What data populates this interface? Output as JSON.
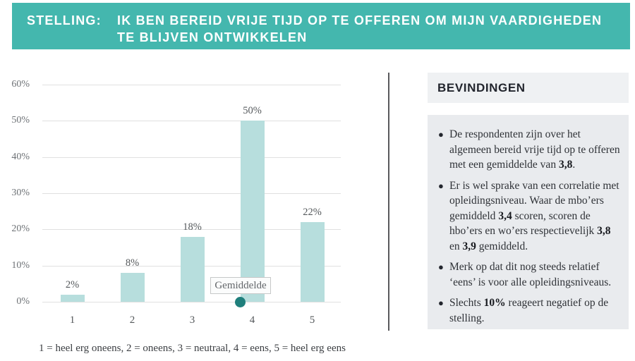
{
  "banner": {
    "label": "STELLING:",
    "statement_line1": "IK BEN BEREID VRIJE TIJD OP TE OFFEREN OM MIJN VAARDIGHEDEN",
    "statement_line2": "TE BLIJVEN ONTWIKKELEN"
  },
  "chart_data": {
    "type": "bar",
    "title": "",
    "categories": [
      "1",
      "2",
      "3",
      "4",
      "5"
    ],
    "values": [
      2,
      8,
      18,
      50,
      22
    ],
    "value_labels": [
      "2%",
      "8%",
      "18%",
      "50%",
      "22%"
    ],
    "ylim": [
      0,
      60
    ],
    "ytick_labels": [
      "0%",
      "10%",
      "20%",
      "30%",
      "40%",
      "50%",
      "60%"
    ],
    "grid": true,
    "legend": "none",
    "mean": {
      "label": "Gemiddelde",
      "value": 3.8
    },
    "footnote": "1 = heel erg oneens, 2 = oneens, 3 = neutraal, 4 = eens, 5 = heel erg eens"
  },
  "findings": {
    "title": "BEVINDINGEN",
    "bullets": [
      {
        "segments": [
          {
            "t": "De respondenten zijn over het algemeen bereid vrije tijd op te offeren met een gemiddelde van ",
            "b": false
          },
          {
            "t": "3,8",
            "b": true
          },
          {
            "t": ".",
            "b": false
          }
        ]
      },
      {
        "segments": [
          {
            "t": "Er is wel sprake van een correlatie met opleidingsniveau. Waar de mbo’ers gemiddeld ",
            "b": false
          },
          {
            "t": "3,4",
            "b": true
          },
          {
            "t": " scoren, scoren de hbo’ers en wo’ers respectievelijk ",
            "b": false
          },
          {
            "t": "3,8",
            "b": true
          },
          {
            "t": " en ",
            "b": false
          },
          {
            "t": "3,9",
            "b": true
          },
          {
            "t": " gemiddeld.",
            "b": false
          }
        ]
      },
      {
        "segments": [
          {
            "t": "Merk op dat dit nog steeds relatief ‘eens’ is voor alle opleidingsniveaus.",
            "b": false
          }
        ]
      },
      {
        "segments": [
          {
            "t": "Slechts ",
            "b": false
          },
          {
            "t": "10%",
            "b": true
          },
          {
            "t": " reageert negatief op de stelling.",
            "b": false
          }
        ]
      }
    ]
  },
  "colors": {
    "banner_bg": "#44b7ae",
    "bar_fill": "#b7dedd",
    "mean_dot": "#1f7f7c",
    "gridline": "#e0e0e0",
    "panel_header_bg": "#eff1f3",
    "panel_body_bg": "#e9ebee"
  }
}
